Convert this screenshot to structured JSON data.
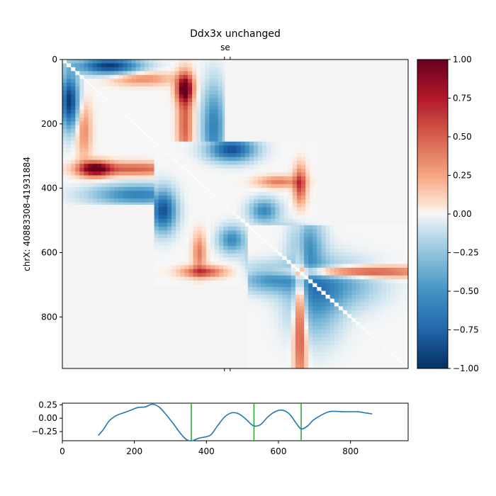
{
  "chart_data": [
    {
      "type": "heatmap",
      "title": "Ddx3x unchanged",
      "ylabel": "chrX: 40883308-41931884",
      "xlim": [
        0,
        960
      ],
      "ylim": [
        960,
        0
      ],
      "x_ticks": [],
      "y_ticks": [
        "0",
        "200",
        "400",
        "600",
        "800"
      ],
      "top_annotation": {
        "label": "se",
        "positions": [
          450,
          466
        ]
      },
      "bottom_tick_positions": [
        450,
        466
      ],
      "colormap": "RdBu_r",
      "background_color": "#f4f4f4",
      "blocks": [
        {
          "start": 0,
          "end": 450
        },
        {
          "start": 255,
          "end": 705
        },
        {
          "start": 515,
          "end": 960
        }
      ],
      "features": [
        {
          "block": 0,
          "x": 130,
          "y": 20,
          "v": -0.95,
          "sx": 60,
          "sy": 18
        },
        {
          "block": 0,
          "x": 20,
          "y": 130,
          "v": -0.95,
          "sx": 18,
          "sy": 60
        },
        {
          "block": 0,
          "x": 340,
          "y": 90,
          "v": 0.95,
          "sx": 16,
          "sy": 30
        },
        {
          "block": 0,
          "x": 90,
          "y": 340,
          "v": 0.95,
          "sx": 30,
          "sy": 16
        },
        {
          "block": 0,
          "x": 340,
          "y": 200,
          "v": 0.5,
          "sx": 14,
          "sy": 90
        },
        {
          "block": 0,
          "x": 200,
          "y": 340,
          "v": 0.5,
          "sx": 90,
          "sy": 14
        },
        {
          "block": 0,
          "x": 420,
          "y": 210,
          "v": -0.6,
          "sx": 22,
          "sy": 90
        },
        {
          "block": 0,
          "x": 210,
          "y": 420,
          "v": -0.6,
          "sx": 90,
          "sy": 22
        },
        {
          "block": 0,
          "x": 220,
          "y": 60,
          "v": 0.35,
          "sx": 60,
          "sy": 14
        },
        {
          "block": 0,
          "x": 60,
          "y": 220,
          "v": 0.35,
          "sx": 14,
          "sy": 60
        },
        {
          "block": 1,
          "x": 470,
          "y": 280,
          "v": -0.85,
          "sx": 45,
          "sy": 25
        },
        {
          "block": 1,
          "x": 280,
          "y": 470,
          "v": -0.85,
          "sx": 25,
          "sy": 45
        },
        {
          "block": 1,
          "x": 660,
          "y": 390,
          "v": 0.6,
          "sx": 12,
          "sy": 40
        },
        {
          "block": 1,
          "x": 390,
          "y": 660,
          "v": 0.6,
          "sx": 40,
          "sy": 12
        },
        {
          "block": 1,
          "x": 560,
          "y": 470,
          "v": -0.55,
          "sx": 28,
          "sy": 25
        },
        {
          "block": 1,
          "x": 470,
          "y": 560,
          "v": -0.55,
          "sx": 25,
          "sy": 28
        },
        {
          "block": 1,
          "x": 600,
          "y": 380,
          "v": 0.4,
          "sx": 40,
          "sy": 12
        },
        {
          "block": 1,
          "x": 380,
          "y": 600,
          "v": 0.4,
          "sx": 12,
          "sy": 40
        },
        {
          "block": 1,
          "x": 620,
          "y": 560,
          "v": -0.45,
          "sx": 40,
          "sy": 30
        },
        {
          "block": 1,
          "x": 560,
          "y": 620,
          "v": -0.45,
          "sx": 30,
          "sy": 40
        },
        {
          "block": 2,
          "x": 800,
          "y": 660,
          "v": 0.7,
          "sx": 140,
          "sy": 12
        },
        {
          "block": 2,
          "x": 660,
          "y": 800,
          "v": 0.7,
          "sx": 12,
          "sy": 140
        },
        {
          "block": 2,
          "x": 680,
          "y": 580,
          "v": -0.5,
          "sx": 30,
          "sy": 60
        },
        {
          "block": 2,
          "x": 580,
          "y": 680,
          "v": -0.5,
          "sx": 60,
          "sy": 30
        },
        {
          "block": 2,
          "x": 700,
          "y": 760,
          "v": -0.4,
          "sx": 50,
          "sy": 80
        },
        {
          "block": 2,
          "x": 760,
          "y": 700,
          "v": -0.4,
          "sx": 80,
          "sy": 50
        }
      ],
      "colorbar": {
        "range": [
          -1.0,
          1.0
        ],
        "ticks": [
          "1.00",
          "0.75",
          "0.50",
          "0.25",
          "0.00",
          "−0.25",
          "−0.50",
          "−0.75",
          "−1.00"
        ]
      }
    },
    {
      "type": "line",
      "xlim": [
        0,
        960
      ],
      "ylim": [
        -0.42,
        0.28
      ],
      "x_ticks": [
        "0",
        "200",
        "400",
        "600",
        "800"
      ],
      "y_ticks": [
        "0.25",
        "0.00",
        "−0.25"
      ],
      "x": [
        100,
        115,
        130,
        150,
        170,
        190,
        210,
        230,
        250,
        270,
        290,
        310,
        330,
        345,
        360,
        380,
        410,
        430,
        450,
        470,
        490,
        510,
        530,
        550,
        570,
        590,
        610,
        630,
        650,
        663,
        680,
        700,
        740,
        780,
        820,
        840,
        860
      ],
      "values": [
        -0.32,
        -0.2,
        -0.05,
        0.05,
        0.1,
        0.15,
        0.2,
        0.21,
        0.26,
        0.2,
        0.05,
        -0.12,
        -0.3,
        -0.4,
        -0.42,
        -0.37,
        -0.32,
        -0.15,
        0.02,
        0.1,
        0.08,
        -0.02,
        -0.14,
        -0.12,
        0.02,
        0.12,
        0.15,
        0.08,
        -0.1,
        -0.2,
        -0.15,
        -0.02,
        0.12,
        0.12,
        0.12,
        0.1,
        0.08
      ],
      "color": "#1f77b4",
      "vlines": [
        358,
        532,
        663
      ],
      "vline_color": "#2ca02c"
    }
  ]
}
